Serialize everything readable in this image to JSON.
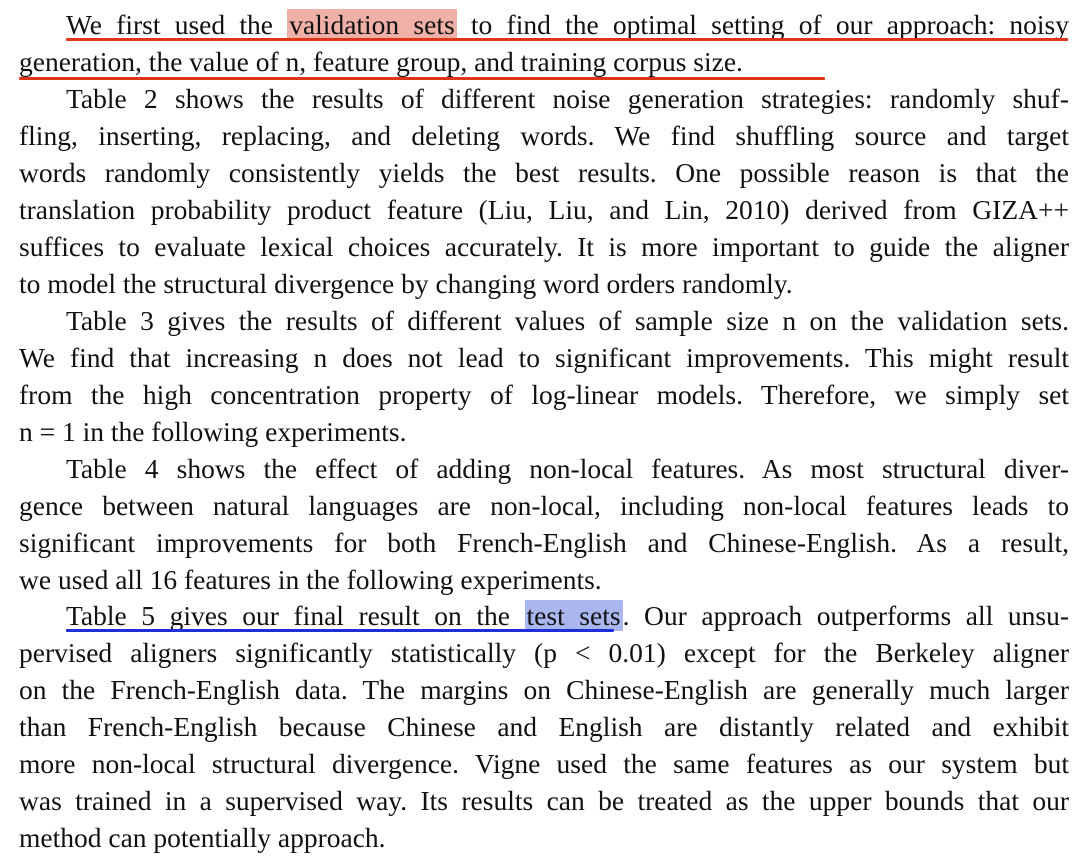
{
  "paragraphs": [
    {
      "lines": [
        {
          "pre": "We first used the ",
          "hl": "validation sets",
          "post": " to find the optimal setting of our approach: noisy"
        },
        "generation, the value of n, feature group, and training corpus size."
      ]
    },
    {
      "lines": [
        "Table 2 shows the results of different noise generation strategies: randomly shuf-",
        "fling, inserting, replacing, and deleting words.  We find shuffling source and target",
        "words randomly consistently yields the best results.  One possible reason is that the",
        "translation probability product feature (Liu, Liu, and Lin, 2010) derived from GIZA++",
        "suffices to evaluate lexical choices accurately. It is more important to guide the aligner",
        "to model the structural divergence by changing word orders randomly."
      ]
    },
    {
      "lines": [
        "Table 3 gives the results of different values of sample size n on the validation sets.",
        "We find that increasing n does not lead to significant improvements. This might result",
        "from the high concentration property of log-linear models.  Therefore, we simply set",
        "n = 1 in the following experiments."
      ]
    },
    {
      "lines": [
        "Table 4 shows the effect of adding non-local features.  As most structural diver-",
        "gence between natural languages are non-local, including non-local features leads to",
        "significant improvements for both French-English and Chinese-English.  As a result,",
        "we used all 16 features in the following experiments."
      ]
    },
    {
      "lines": [
        {
          "pre": "Table 5 gives our final result on the ",
          "hl": "test sets",
          "post": ". Our approach outperforms all unsu-"
        },
        "pervised aligners significantly statistically (p < 0.01) except for the Berkeley aligner",
        "on the French-English data. The margins on Chinese-English are generally much larger",
        "than French-English because Chinese and English are distantly related and exhibit",
        "more non-local structural divergence. Vigne used the same features as our system but",
        "was trained in a supervised way. Its results can be treated as the upper bounds that our",
        "method can potentially approach."
      ]
    }
  ],
  "annotations": {
    "red": "#e0341a",
    "red_highlight": "#efb0a8",
    "blue": "#1f2fd6",
    "blue_highlight": "#aab6ee"
  }
}
